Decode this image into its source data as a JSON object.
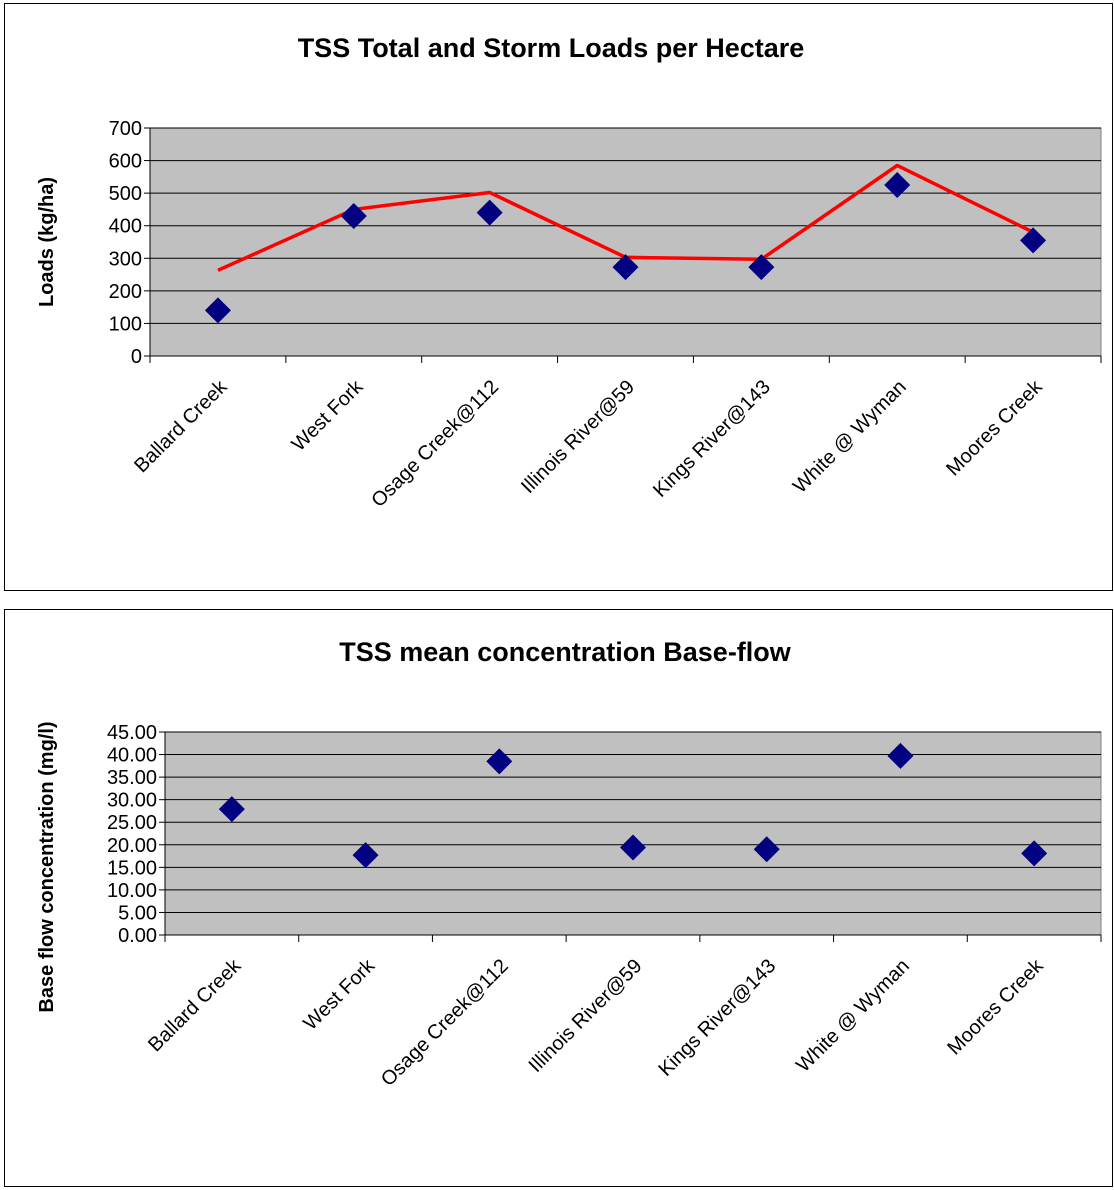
{
  "chart_data": [
    {
      "type": "line",
      "title": "TSS Total and Storm Loads per Hectare",
      "xlabel": "",
      "ylabel": "Loads (kg/ha)",
      "ylim": [
        0,
        700
      ],
      "yticks": [
        "0",
        "100",
        "200",
        "300",
        "400",
        "500",
        "600",
        "700"
      ],
      "grid": true,
      "categories": [
        "Ballard Creek",
        "West Fork",
        "Osage Creek@112",
        "Illinois River@59",
        "Kings River@143",
        "White @ Wyman",
        "Moores Creek"
      ],
      "series": [
        {
          "kind": "line",
          "color": "#ff0000",
          "values": [
            263,
            450,
            502,
            303,
            297,
            585,
            380
          ]
        },
        {
          "kind": "marker",
          "color": "#000080",
          "values": [
            140,
            430,
            440,
            273,
            273,
            525,
            355
          ]
        }
      ]
    },
    {
      "type": "scatter",
      "title": "TSS mean concentration Base-flow",
      "xlabel": "",
      "ylabel": "Base flow concentration (mg/l)",
      "ylim": [
        0,
        45
      ],
      "yticks": [
        "0.00",
        "5.00",
        "10.00",
        "15.00",
        "20.00",
        "25.00",
        "30.00",
        "35.00",
        "40.00",
        "45.00"
      ],
      "grid": true,
      "categories": [
        "Ballard Creek",
        "West Fork",
        "Osage Creek@112",
        "Illinois River@59",
        "Kings River@143",
        "White @ Wyman",
        "Moores Creek"
      ],
      "series": [
        {
          "kind": "marker",
          "color": "#000080",
          "values": [
            27.9,
            17.7,
            38.5,
            19.4,
            19.0,
            39.7,
            18.1
          ]
        }
      ]
    }
  ]
}
